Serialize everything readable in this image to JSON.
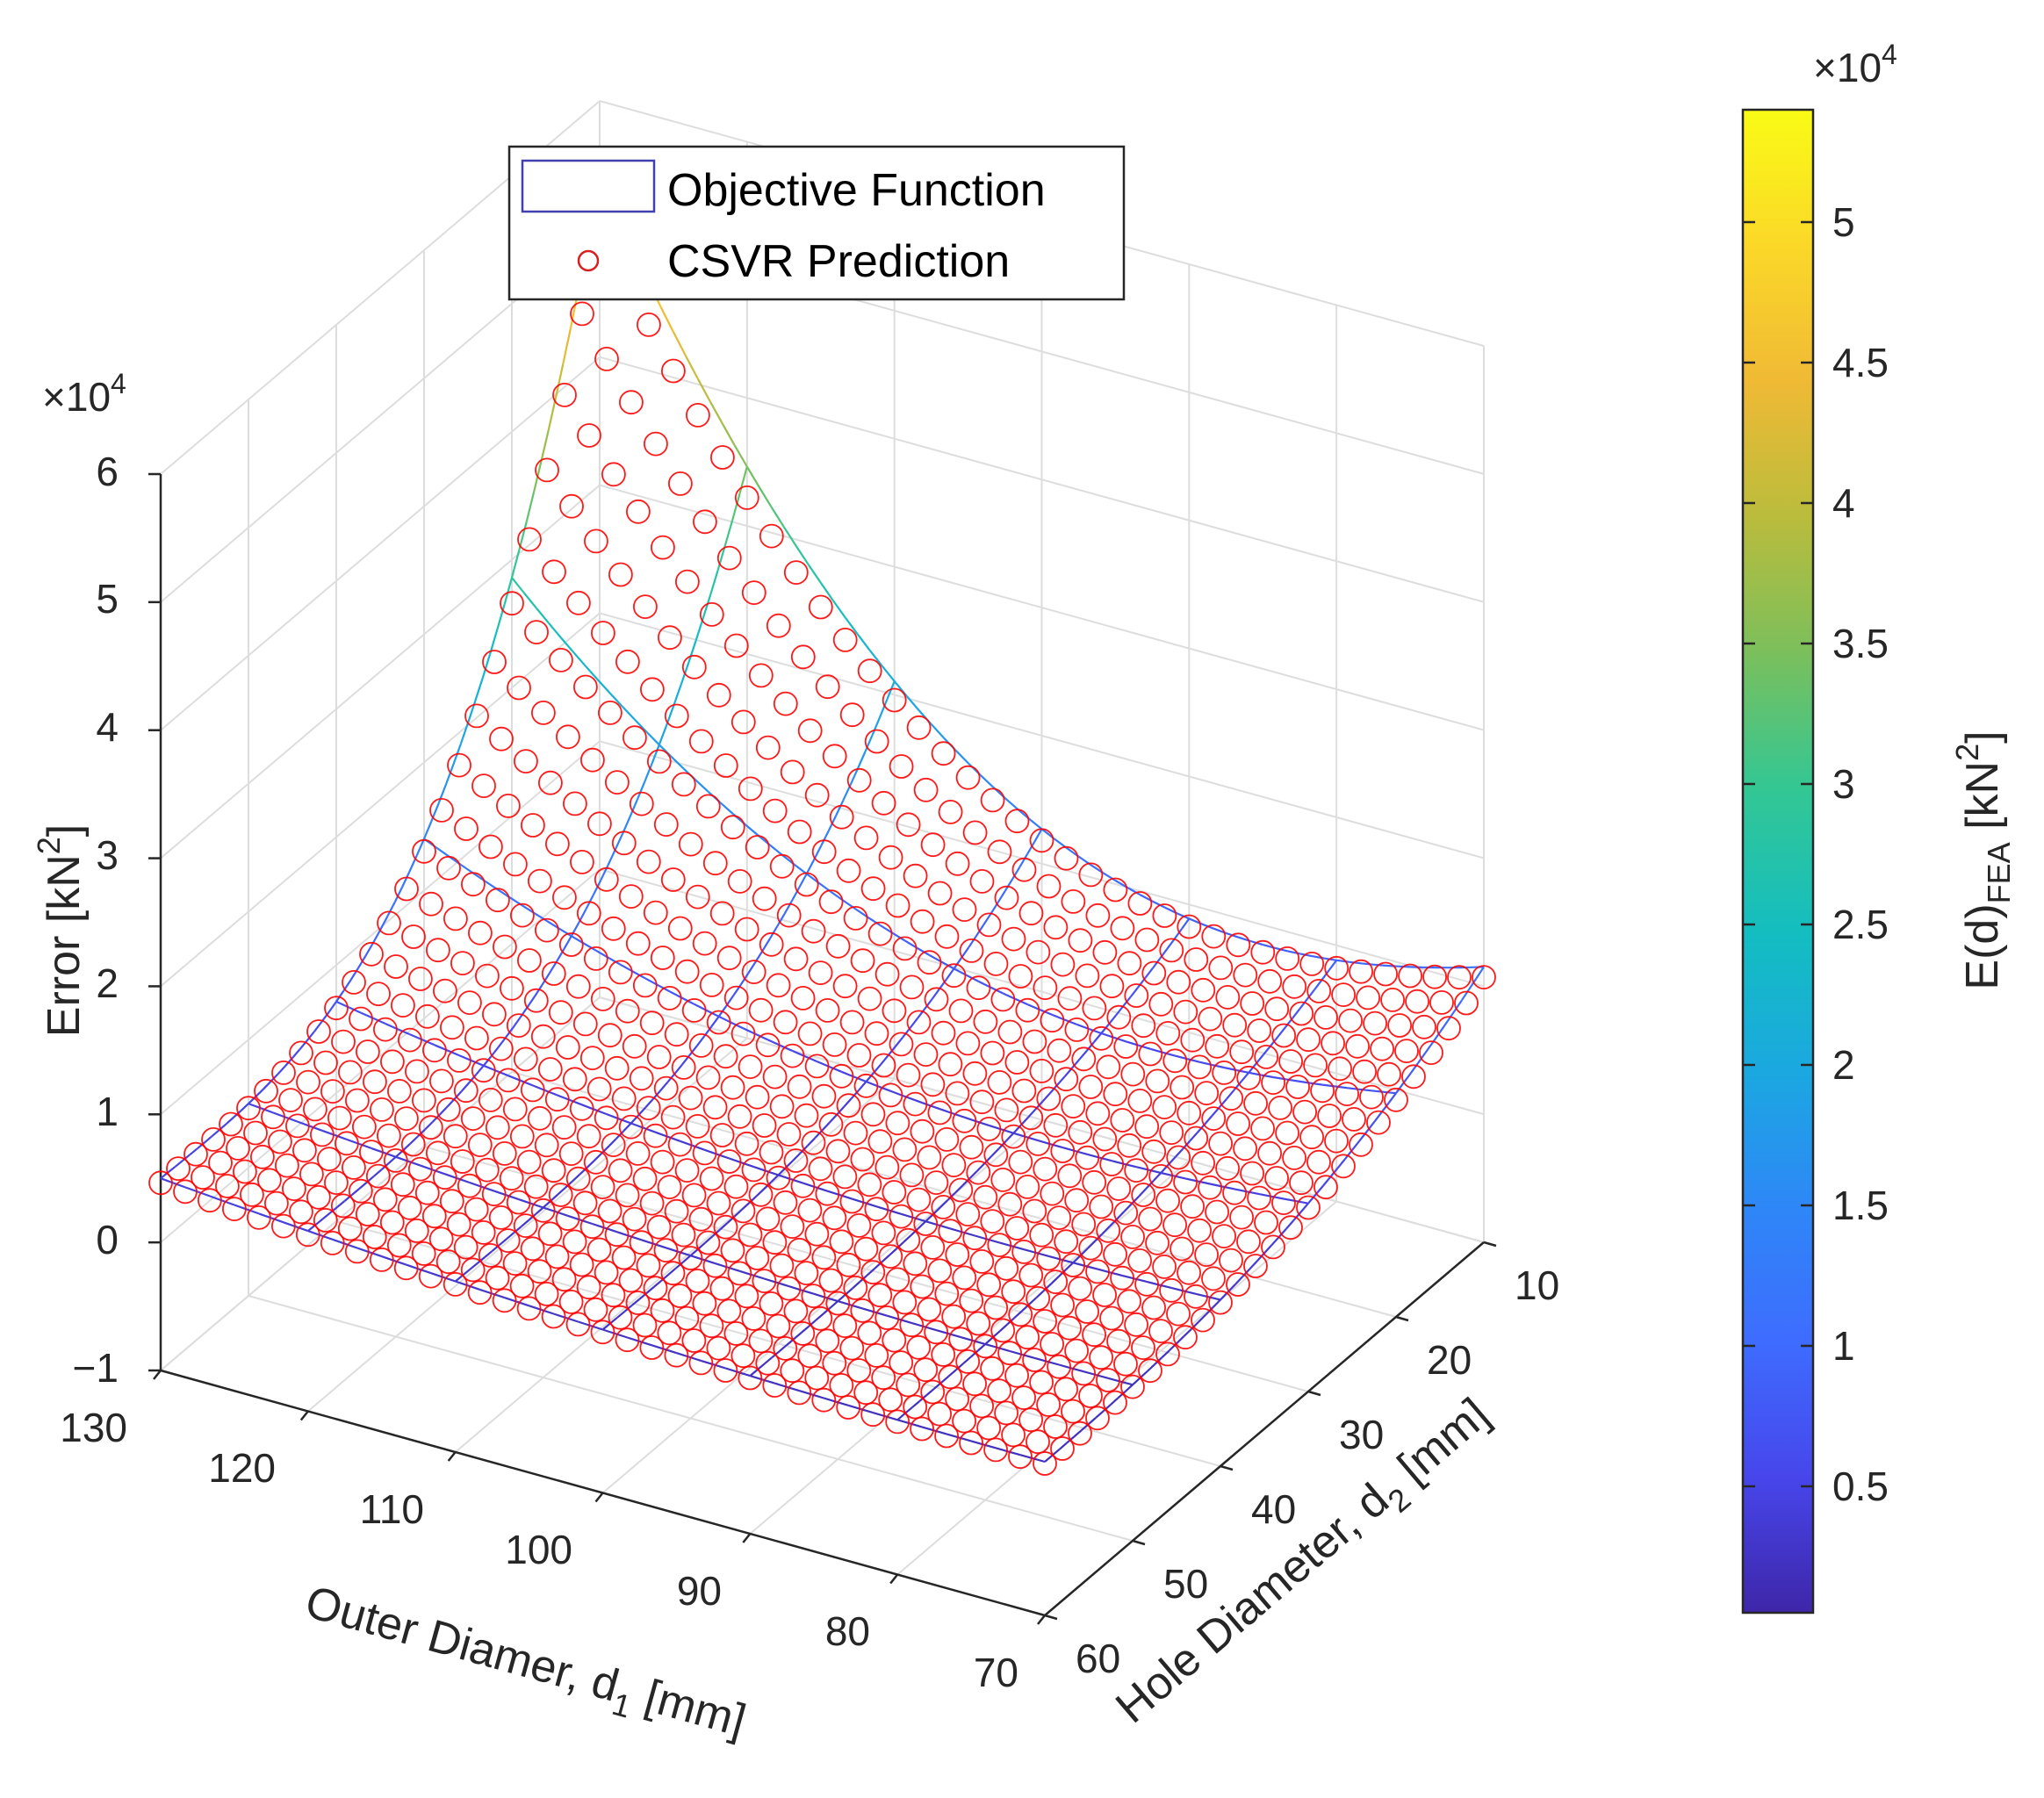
{
  "chart_data": {
    "type": "surface3d",
    "title": "",
    "xlabel": "Outer Diamer, d",
    "xlabel_sub": "1",
    "xlabel_unit": " [mm]",
    "ylabel": "Hole Diameter, d",
    "ylabel_sub": "2",
    "ylabel_unit": " [mm]",
    "zlabel": "Error [kN",
    "zlabel_sup": "2",
    "zlabel_close": "]",
    "z_multiplier": {
      "base": "×10",
      "exp": "4"
    },
    "x_ticks": [
      "130",
      "120",
      "110",
      "100",
      "90",
      "80",
      "70"
    ],
    "y_ticks": [
      "10",
      "20",
      "30",
      "40",
      "50",
      "60"
    ],
    "z_ticks": [
      "6",
      "5",
      "4",
      "3",
      "2",
      "1",
      "0",
      "−1"
    ],
    "xlim": [
      70,
      130
    ],
    "ylim": [
      10,
      60
    ],
    "zlim": [
      -10000,
      60000
    ],
    "legend": {
      "entries": [
        {
          "label": "Objective Function",
          "marker": "surface",
          "color": "#4040b0"
        },
        {
          "label": "CSVR Prediction",
          "marker": "circle",
          "color": "#d81e1e"
        }
      ],
      "location": "top-center"
    },
    "series": [
      {
        "name": "Objective Function",
        "kind": "mesh",
        "x_grid": [
          130,
          120,
          110,
          100,
          90,
          80,
          70
        ],
        "y_grid": [
          60,
          50,
          40,
          30,
          20,
          10
        ]
      },
      {
        "name": "CSVR Prediction",
        "kind": "scatter",
        "marker": "o",
        "color": "#ff0000",
        "x_count": 37,
        "y_count": 26
      }
    ],
    "colorbar": {
      "label": "E(d)",
      "label_sub": "FEA",
      "label_unit": " [kN",
      "label_sup": "2",
      "label_close": "]",
      "multiplier": {
        "base": "×10",
        "exp": "4"
      },
      "ticks": [
        "5",
        "4.5",
        "4",
        "3.5",
        "3",
        "2.5",
        "2",
        "1.5",
        "1",
        "0.5"
      ],
      "range": [
        500,
        54000
      ],
      "colormap": "parula",
      "colors": [
        "#3e26a8",
        "#4746eb",
        "#3e6cfe",
        "#2e87f7",
        "#1ba8e0",
        "#13bdc1",
        "#34c793",
        "#7cbf5b",
        "#bbbc3c",
        "#f0ba35",
        "#fbd828",
        "#f9fb15"
      ]
    }
  }
}
